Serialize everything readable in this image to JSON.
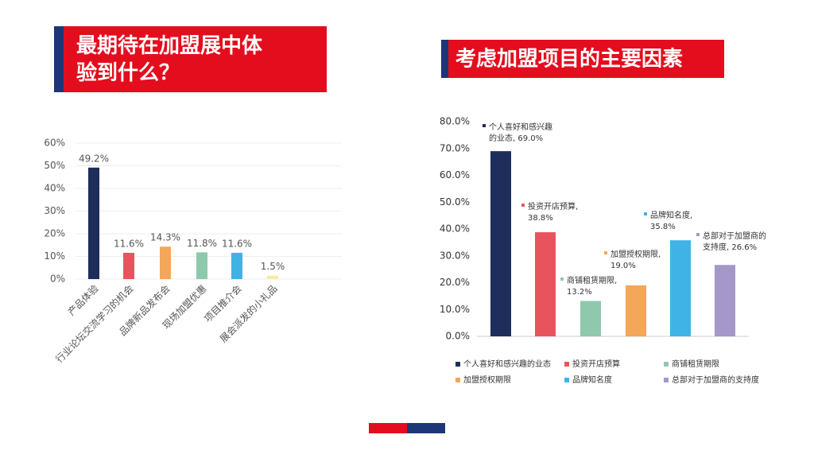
{
  "chart_data": [
    {
      "type": "bar",
      "title": "最期待在加盟展中体验到什么？",
      "categories": [
        "产品体验",
        "行业论坛交流学习的机会",
        "品牌新品发布会",
        "现场加盟优惠",
        "项目推介会",
        "展会派发的小礼品"
      ],
      "values": [
        49.2,
        11.6,
        14.3,
        11.8,
        11.6,
        1.5
      ],
      "value_labels": [
        "49.2%",
        "11.6%",
        "14.3%",
        "11.8%",
        "11.6%",
        "1.5%"
      ],
      "colors": [
        "#1f2d5c",
        "#e8545d",
        "#f4a65a",
        "#8fc9ad",
        "#3fb3e6",
        "#f7eca0"
      ],
      "ylim": [
        0,
        60
      ],
      "yticks": [
        {
          "value": 0,
          "label": "0%"
        },
        {
          "value": 10,
          "label": "10%"
        },
        {
          "value": 20,
          "label": "20%"
        },
        {
          "value": 30,
          "label": "30%"
        },
        {
          "value": 40,
          "label": "40%"
        },
        {
          "value": 50,
          "label": "50%"
        },
        {
          "value": 60,
          "label": "60%"
        }
      ],
      "grid": true
    },
    {
      "type": "bar",
      "title": "考虑加盟项目的主要因素",
      "series": [
        {
          "name": "个人喜好和感兴趣的业态",
          "color": "#1f2d5c",
          "values": [
            69.0
          ],
          "value_labels": [
            "个人喜好和感兴趣的业态, 69.0%"
          ]
        },
        {
          "name": "投资开店预算",
          "color": "#e8545d",
          "values": [
            38.8
          ],
          "value_labels": [
            "投资开店预算, 38.8%"
          ]
        },
        {
          "name": "商铺租赁期限",
          "color": "#8fc9ad",
          "values": [
            13.2
          ],
          "value_labels": [
            "商铺租赁期限, 13.2%"
          ]
        },
        {
          "name": "加盟授权期限",
          "color": "#f4a65a",
          "values": [
            19.0
          ],
          "value_labels": [
            "加盟授权期限, 19.0%"
          ]
        },
        {
          "name": "品牌知名度",
          "color": "#3fb3e6",
          "values": [
            35.8
          ],
          "value_labels": [
            "品牌知名度, 35.8%"
          ]
        },
        {
          "name": "总部对于加盟商的支持度",
          "color": "#a597c8",
          "values": [
            26.6
          ],
          "value_labels": [
            "总部对于加盟商的支持度, 26.6%"
          ]
        }
      ],
      "ylim": [
        0,
        80
      ],
      "yticks": [
        {
          "value": 0,
          "label": "0.0%"
        },
        {
          "value": 10,
          "label": "10.0%"
        },
        {
          "value": 20,
          "label": "20.0%"
        },
        {
          "value": 30,
          "label": "30.0%"
        },
        {
          "value": 40,
          "label": "40.0%"
        },
        {
          "value": 50,
          "label": "50.0%"
        },
        {
          "value": 60,
          "label": "60.0%"
        },
        {
          "value": 70,
          "label": "70.0%"
        },
        {
          "value": 80,
          "label": "80.0%"
        }
      ],
      "legend": "bottom"
    }
  ]
}
